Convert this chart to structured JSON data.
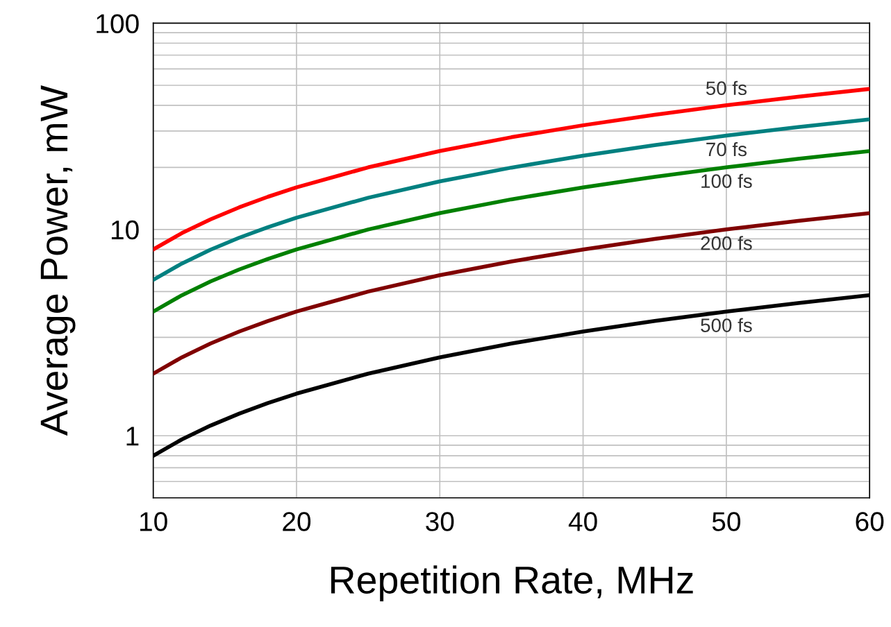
{
  "chart_data": {
    "type": "line",
    "xlabel": "Repetition Rate, MHz",
    "ylabel": "Average Power, mW",
    "x": [
      10,
      12,
      14,
      16,
      18,
      20,
      25,
      30,
      35,
      40,
      45,
      50,
      55,
      60
    ],
    "series": [
      {
        "name": "50 fs",
        "color": "#ff0000",
        "values": [
          8,
          9.6,
          11.2,
          12.8,
          14.4,
          16,
          20,
          24,
          28,
          32,
          36,
          40,
          44,
          48
        ]
      },
      {
        "name": "70 fs",
        "color": "#008080",
        "values": [
          5.7,
          6.84,
          7.98,
          9.12,
          10.26,
          11.4,
          14.25,
          17.1,
          19.95,
          22.8,
          25.65,
          28.5,
          31.35,
          34.2
        ]
      },
      {
        "name": "100 fs",
        "color": "#008000",
        "values": [
          4,
          4.8,
          5.6,
          6.4,
          7.2,
          8,
          10,
          12,
          14,
          16,
          18,
          20,
          22,
          24
        ]
      },
      {
        "name": "200 fs",
        "color": "#800000",
        "values": [
          2,
          2.4,
          2.8,
          3.2,
          3.6,
          4,
          5,
          6,
          7,
          8,
          9,
          10,
          11,
          12
        ]
      },
      {
        "name": "500 fs",
        "color": "#000000",
        "values": [
          0.8,
          0.96,
          1.12,
          1.28,
          1.44,
          1.6,
          2,
          2.4,
          2.8,
          3.2,
          3.6,
          4,
          4.4,
          4.8
        ]
      }
    ],
    "log": "y",
    "grid": true,
    "marker": "none",
    "line_style": "solid",
    "xlim": [
      10,
      60
    ],
    "xticks": [
      10,
      20,
      30,
      40,
      50,
      60
    ],
    "ylim": [
      0.5,
      100
    ],
    "yticks": [
      {
        "value": 0.5,
        "label": null
      },
      {
        "value": 0.6,
        "label": null
      },
      {
        "value": 0.7,
        "label": null
      },
      {
        "value": 0.8,
        "label": null
      },
      {
        "value": 0.9,
        "label": null
      },
      1,
      {
        "value": 2,
        "label": null
      },
      {
        "value": 3,
        "label": null
      },
      {
        "value": 4,
        "label": null
      },
      {
        "value": 5,
        "label": null
      },
      {
        "value": 6,
        "label": null
      },
      {
        "value": 7,
        "label": null
      },
      {
        "value": 8,
        "label": null
      },
      {
        "value": 9,
        "label": null
      },
      10,
      {
        "value": 20,
        "label": null
      },
      {
        "value": 30,
        "label": null
      },
      {
        "value": 40,
        "label": null
      },
      {
        "value": 50,
        "label": null
      },
      {
        "value": 60,
        "label": null
      },
      {
        "value": 70,
        "label": null
      },
      {
        "value": 80,
        "label": null
      },
      {
        "value": 90,
        "label": null
      },
      100
    ]
  }
}
